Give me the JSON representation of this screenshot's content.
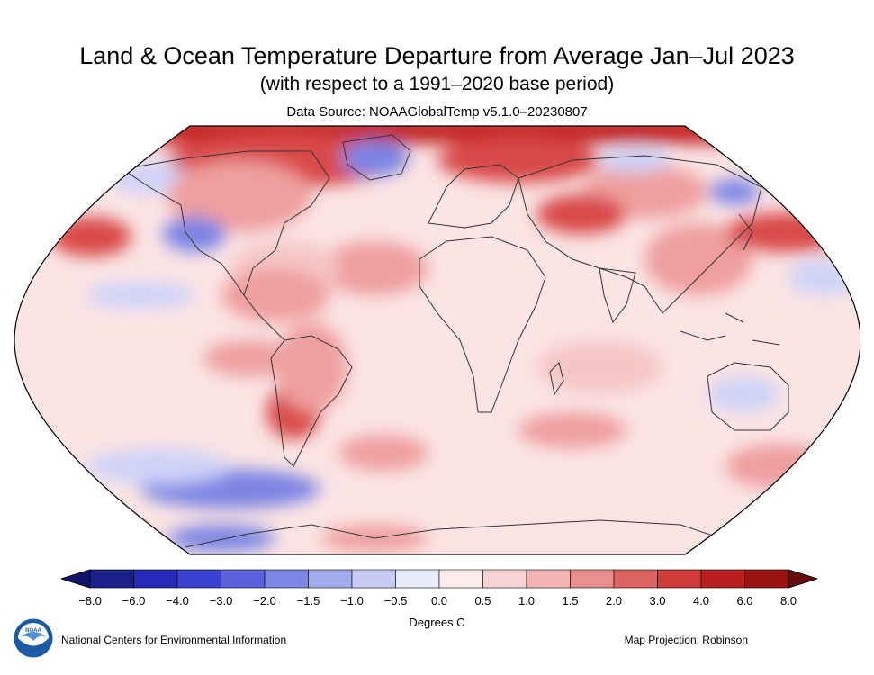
{
  "header": {
    "title": "Land & Ocean Temperature Departure from Average Jan–Jul 2023",
    "subtitle": "(with respect to a 1991–2020 base period)",
    "source": "Data Source: NOAAGlobalTemp v5.1.0–20230807"
  },
  "legend": {
    "ticks": [
      "−8.0",
      "−6.0",
      "−4.0",
      "−3.0",
      "−2.0",
      "−1.5",
      "−1.0",
      "−0.5",
      "0.0",
      "0.5",
      "1.0",
      "1.5",
      "2.0",
      "3.0",
      "4.0",
      "6.0",
      "8.0"
    ],
    "colors": [
      "#1b1f8a",
      "#2528b8",
      "#3a40d0",
      "#5a62dc",
      "#7f87e6",
      "#a3abef",
      "#c7ccf7",
      "#e9ecfc",
      "#fdecec",
      "#f9d3d3",
      "#f2b4b4",
      "#e98f8f",
      "#de6464",
      "#d03b3b",
      "#bb1e1e",
      "#9a1212"
    ],
    "below_color": "#10146a",
    "above_color": "#6b0c0c",
    "units": "Degrees C"
  },
  "footer": {
    "organization": "National Centers for Environmental Information",
    "projection": "Map Projection: Robinson",
    "logo_text": "NOAA"
  },
  "map": {
    "base_color": "#fbe4e4",
    "ocean_warm": "#f6c6c6",
    "land_warm": "#ef9f9f",
    "hot": "#d94848",
    "very_hot": "#c22727",
    "cool": "#cfd3f8",
    "cold": "#7c84e4",
    "border_color": "#333333"
  }
}
